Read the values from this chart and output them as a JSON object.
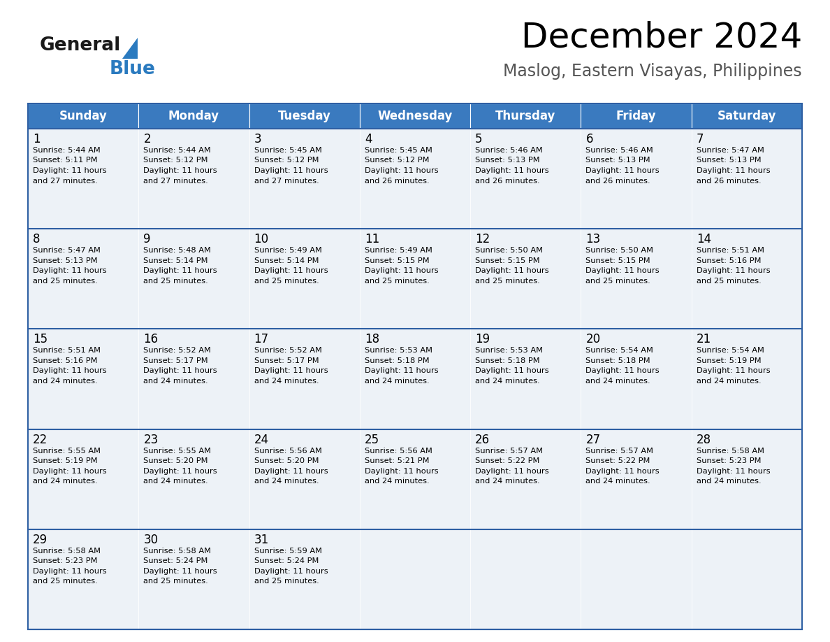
{
  "title": "December 2024",
  "subtitle": "Maslog, Eastern Visayas, Philippines",
  "header_color": "#3a7abf",
  "header_text_color": "#ffffff",
  "cell_bg_color": "#edf2f7",
  "border_color": "#2e5fa3",
  "days_of_week": [
    "Sunday",
    "Monday",
    "Tuesday",
    "Wednesday",
    "Thursday",
    "Friday",
    "Saturday"
  ],
  "calendar": [
    [
      {
        "day": 1,
        "sunrise": "5:44 AM",
        "sunset": "5:11 PM",
        "daylight_hours": 11,
        "daylight_minutes": 27
      },
      {
        "day": 2,
        "sunrise": "5:44 AM",
        "sunset": "5:12 PM",
        "daylight_hours": 11,
        "daylight_minutes": 27
      },
      {
        "day": 3,
        "sunrise": "5:45 AM",
        "sunset": "5:12 PM",
        "daylight_hours": 11,
        "daylight_minutes": 27
      },
      {
        "day": 4,
        "sunrise": "5:45 AM",
        "sunset": "5:12 PM",
        "daylight_hours": 11,
        "daylight_minutes": 26
      },
      {
        "day": 5,
        "sunrise": "5:46 AM",
        "sunset": "5:13 PM",
        "daylight_hours": 11,
        "daylight_minutes": 26
      },
      {
        "day": 6,
        "sunrise": "5:46 AM",
        "sunset": "5:13 PM",
        "daylight_hours": 11,
        "daylight_minutes": 26
      },
      {
        "day": 7,
        "sunrise": "5:47 AM",
        "sunset": "5:13 PM",
        "daylight_hours": 11,
        "daylight_minutes": 26
      }
    ],
    [
      {
        "day": 8,
        "sunrise": "5:47 AM",
        "sunset": "5:13 PM",
        "daylight_hours": 11,
        "daylight_minutes": 25
      },
      {
        "day": 9,
        "sunrise": "5:48 AM",
        "sunset": "5:14 PM",
        "daylight_hours": 11,
        "daylight_minutes": 25
      },
      {
        "day": 10,
        "sunrise": "5:49 AM",
        "sunset": "5:14 PM",
        "daylight_hours": 11,
        "daylight_minutes": 25
      },
      {
        "day": 11,
        "sunrise": "5:49 AM",
        "sunset": "5:15 PM",
        "daylight_hours": 11,
        "daylight_minutes": 25
      },
      {
        "day": 12,
        "sunrise": "5:50 AM",
        "sunset": "5:15 PM",
        "daylight_hours": 11,
        "daylight_minutes": 25
      },
      {
        "day": 13,
        "sunrise": "5:50 AM",
        "sunset": "5:15 PM",
        "daylight_hours": 11,
        "daylight_minutes": 25
      },
      {
        "day": 14,
        "sunrise": "5:51 AM",
        "sunset": "5:16 PM",
        "daylight_hours": 11,
        "daylight_minutes": 25
      }
    ],
    [
      {
        "day": 15,
        "sunrise": "5:51 AM",
        "sunset": "5:16 PM",
        "daylight_hours": 11,
        "daylight_minutes": 24
      },
      {
        "day": 16,
        "sunrise": "5:52 AM",
        "sunset": "5:17 PM",
        "daylight_hours": 11,
        "daylight_minutes": 24
      },
      {
        "day": 17,
        "sunrise": "5:52 AM",
        "sunset": "5:17 PM",
        "daylight_hours": 11,
        "daylight_minutes": 24
      },
      {
        "day": 18,
        "sunrise": "5:53 AM",
        "sunset": "5:18 PM",
        "daylight_hours": 11,
        "daylight_minutes": 24
      },
      {
        "day": 19,
        "sunrise": "5:53 AM",
        "sunset": "5:18 PM",
        "daylight_hours": 11,
        "daylight_minutes": 24
      },
      {
        "day": 20,
        "sunrise": "5:54 AM",
        "sunset": "5:18 PM",
        "daylight_hours": 11,
        "daylight_minutes": 24
      },
      {
        "day": 21,
        "sunrise": "5:54 AM",
        "sunset": "5:19 PM",
        "daylight_hours": 11,
        "daylight_minutes": 24
      }
    ],
    [
      {
        "day": 22,
        "sunrise": "5:55 AM",
        "sunset": "5:19 PM",
        "daylight_hours": 11,
        "daylight_minutes": 24
      },
      {
        "day": 23,
        "sunrise": "5:55 AM",
        "sunset": "5:20 PM",
        "daylight_hours": 11,
        "daylight_minutes": 24
      },
      {
        "day": 24,
        "sunrise": "5:56 AM",
        "sunset": "5:20 PM",
        "daylight_hours": 11,
        "daylight_minutes": 24
      },
      {
        "day": 25,
        "sunrise": "5:56 AM",
        "sunset": "5:21 PM",
        "daylight_hours": 11,
        "daylight_minutes": 24
      },
      {
        "day": 26,
        "sunrise": "5:57 AM",
        "sunset": "5:22 PM",
        "daylight_hours": 11,
        "daylight_minutes": 24
      },
      {
        "day": 27,
        "sunrise": "5:57 AM",
        "sunset": "5:22 PM",
        "daylight_hours": 11,
        "daylight_minutes": 24
      },
      {
        "day": 28,
        "sunrise": "5:58 AM",
        "sunset": "5:23 PM",
        "daylight_hours": 11,
        "daylight_minutes": 24
      }
    ],
    [
      {
        "day": 29,
        "sunrise": "5:58 AM",
        "sunset": "5:23 PM",
        "daylight_hours": 11,
        "daylight_minutes": 25
      },
      {
        "day": 30,
        "sunrise": "5:58 AM",
        "sunset": "5:24 PM",
        "daylight_hours": 11,
        "daylight_minutes": 25
      },
      {
        "day": 31,
        "sunrise": "5:59 AM",
        "sunset": "5:24 PM",
        "daylight_hours": 11,
        "daylight_minutes": 25
      },
      null,
      null,
      null,
      null
    ]
  ],
  "n_rows": 5,
  "n_cols": 7,
  "bg_color": "#ffffff",
  "text_color": "#000000",
  "day_number_fontsize": 12,
  "cell_text_fontsize": 8.2,
  "header_fontsize": 12,
  "title_fontsize": 36,
  "subtitle_fontsize": 17,
  "logo_general_fontsize": 19,
  "logo_blue_fontsize": 19
}
